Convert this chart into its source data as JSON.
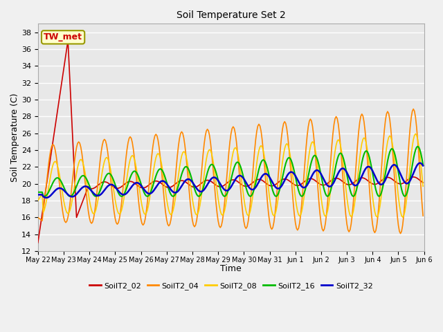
{
  "title": "Soil Temperature Set 2",
  "xlabel": "Time",
  "ylabel": "Soil Temperature (C)",
  "ylim": [
    12,
    39
  ],
  "yticks": [
    12,
    14,
    16,
    18,
    20,
    22,
    24,
    26,
    28,
    30,
    32,
    34,
    36,
    38
  ],
  "annotation_text": "TW_met",
  "annotation_color": "#cc0000",
  "annotation_bg": "#ffffcc",
  "annotation_border": "#999900",
  "fig_bg": "#f0f0f0",
  "plot_bg": "#e8e8e8",
  "legend_entries": [
    "SoilT2_02",
    "SoilT2_04",
    "SoilT2_08",
    "SoilT2_16",
    "SoilT2_32"
  ],
  "line_colors": [
    "#cc0000",
    "#ff8800",
    "#ffcc00",
    "#00bb00",
    "#0000cc"
  ],
  "line_widths": [
    1.2,
    1.2,
    1.2,
    1.5,
    1.8
  ],
  "x_tick_labels": [
    "May 22",
    "May 23",
    "May 24",
    "May 25",
    "May 26",
    "May 27",
    "May 28",
    "May 29",
    "May 30",
    "May 31",
    "Jun 1",
    "Jun 2",
    "Jun 3",
    "Jun 4",
    "Jun 5",
    "Jun 6"
  ]
}
